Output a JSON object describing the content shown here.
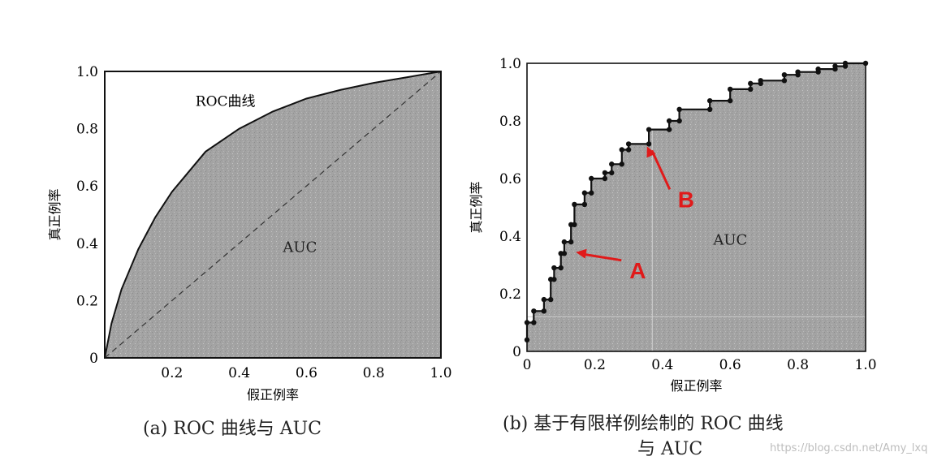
{
  "chart_data": [
    {
      "type": "area",
      "id": "a",
      "caption": "(a) ROC 曲线与 AUC",
      "xlabel": "假正例率",
      "ylabel": "真正例率",
      "xlim": [
        0,
        1
      ],
      "ylim": [
        0,
        1
      ],
      "x_ticks": [
        "0.2",
        "0.4",
        "0.6",
        "0.8",
        "1.0"
      ],
      "y_ticks": [
        "0",
        "0.2",
        "0.4",
        "0.6",
        "0.8",
        "1.0"
      ],
      "curve_label": "ROC曲线",
      "area_label": "AUC",
      "curve": [
        [
          0,
          0
        ],
        [
          0.02,
          0.12
        ],
        [
          0.05,
          0.24
        ],
        [
          0.1,
          0.38
        ],
        [
          0.15,
          0.49
        ],
        [
          0.2,
          0.58
        ],
        [
          0.3,
          0.72
        ],
        [
          0.4,
          0.8
        ],
        [
          0.5,
          0.86
        ],
        [
          0.6,
          0.905
        ],
        [
          0.7,
          0.935
        ],
        [
          0.8,
          0.96
        ],
        [
          0.9,
          0.98
        ],
        [
          1,
          1
        ]
      ],
      "diagonal": [
        [
          0,
          0
        ],
        [
          1,
          1
        ]
      ],
      "grid": false,
      "fill_color": "#a6a6a6"
    },
    {
      "type": "area",
      "id": "b",
      "caption_lines": [
        "(b) 基于有限样例绘制的 ROC 曲线",
        "与 AUC"
      ],
      "xlabel": "假正例率",
      "ylabel": "真正例率",
      "xlim": [
        0,
        1
      ],
      "ylim": [
        0,
        1
      ],
      "x_ticks": [
        "0",
        "0.2",
        "0.4",
        "0.6",
        "0.8",
        "1.0"
      ],
      "y_ticks": [
        "0",
        "0.2",
        "0.4",
        "0.6",
        "0.8",
        "1.0"
      ],
      "area_label": "AUC",
      "step_points": [
        [
          0,
          0.04
        ],
        [
          0,
          0.1
        ],
        [
          0.02,
          0.1
        ],
        [
          0.02,
          0.14
        ],
        [
          0.05,
          0.14
        ],
        [
          0.05,
          0.18
        ],
        [
          0.07,
          0.18
        ],
        [
          0.07,
          0.25
        ],
        [
          0.08,
          0.25
        ],
        [
          0.08,
          0.29
        ],
        [
          0.1,
          0.29
        ],
        [
          0.1,
          0.34
        ],
        [
          0.11,
          0.34
        ],
        [
          0.11,
          0.38
        ],
        [
          0.13,
          0.38
        ],
        [
          0.13,
          0.44
        ],
        [
          0.14,
          0.44
        ],
        [
          0.14,
          0.51
        ],
        [
          0.17,
          0.51
        ],
        [
          0.17,
          0.55
        ],
        [
          0.19,
          0.55
        ],
        [
          0.19,
          0.6
        ],
        [
          0.23,
          0.6
        ],
        [
          0.23,
          0.62
        ],
        [
          0.25,
          0.62
        ],
        [
          0.25,
          0.65
        ],
        [
          0.28,
          0.65
        ],
        [
          0.28,
          0.7
        ],
        [
          0.3,
          0.7
        ],
        [
          0.3,
          0.72
        ],
        [
          0.36,
          0.72
        ],
        [
          0.36,
          0.77
        ],
        [
          0.42,
          0.77
        ],
        [
          0.42,
          0.8
        ],
        [
          0.45,
          0.8
        ],
        [
          0.45,
          0.84
        ],
        [
          0.54,
          0.84
        ],
        [
          0.54,
          0.87
        ],
        [
          0.6,
          0.87
        ],
        [
          0.6,
          0.91
        ],
        [
          0.66,
          0.91
        ],
        [
          0.66,
          0.93
        ],
        [
          0.69,
          0.93
        ],
        [
          0.69,
          0.94
        ],
        [
          0.76,
          0.94
        ],
        [
          0.76,
          0.96
        ],
        [
          0.8,
          0.96
        ],
        [
          0.8,
          0.97
        ],
        [
          0.86,
          0.97
        ],
        [
          0.86,
          0.98
        ],
        [
          0.91,
          0.98
        ],
        [
          0.91,
          0.99
        ],
        [
          0.94,
          0.99
        ],
        [
          0.94,
          1.0
        ],
        [
          1.0,
          1.0
        ]
      ],
      "guide_lines": {
        "x": 0.37,
        "y": 0.12
      },
      "annotations": [
        {
          "text": "A",
          "point": [
            0.13,
            0.35
          ],
          "color": "#e01a1a"
        },
        {
          "text": "B",
          "point": [
            0.34,
            0.72
          ],
          "color": "#e01a1a"
        }
      ],
      "grid": false,
      "fill_color": "#a6a6a6"
    }
  ],
  "watermark": "https://blog.csdn.net/Amy_lxq"
}
